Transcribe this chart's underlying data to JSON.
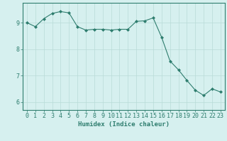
{
  "x": [
    0,
    1,
    2,
    3,
    4,
    5,
    6,
    7,
    8,
    9,
    10,
    11,
    12,
    13,
    14,
    15,
    16,
    17,
    18,
    19,
    20,
    21,
    22,
    23
  ],
  "y": [
    9.0,
    8.85,
    9.15,
    9.35,
    9.42,
    9.37,
    8.85,
    8.72,
    8.75,
    8.75,
    8.72,
    8.75,
    8.75,
    9.05,
    9.07,
    9.18,
    8.45,
    7.55,
    7.22,
    6.82,
    6.45,
    6.25,
    6.5,
    6.38
  ],
  "line_color": "#2e7d6e",
  "marker": "D",
  "marker_size": 2.0,
  "bg_color": "#d6f0ef",
  "grid_color": "#b8dbd8",
  "axis_color": "#2e7d6e",
  "xlabel": "Humidex (Indice chaleur)",
  "xlabel_fontsize": 6.5,
  "tick_fontsize": 6.0,
  "yticks": [
    6,
    7,
    8,
    9
  ],
  "ylim": [
    5.7,
    9.75
  ],
  "xlim": [
    -0.5,
    23.5
  ]
}
